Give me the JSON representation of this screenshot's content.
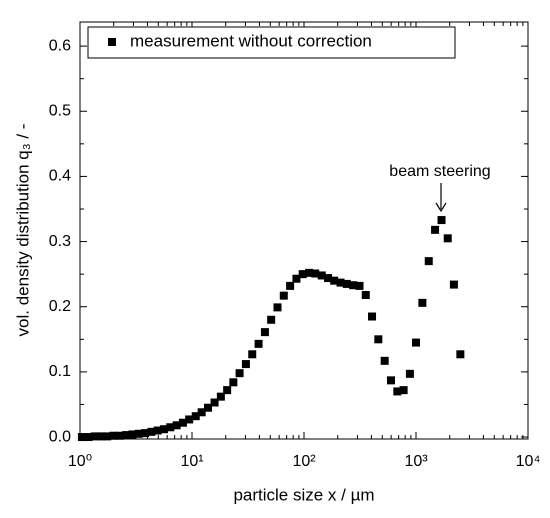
{
  "chart_data": {
    "type": "scatter",
    "xlabel": "particle size x / µm",
    "ylabel": "vol. density distribution q₃ / -",
    "annotation": "beam steering",
    "legend": "upper left",
    "log_x": true,
    "xlim": [
      1,
      10000
    ],
    "ylim": [
      -0.003,
      0.637
    ],
    "xticks": [
      {
        "value": 1,
        "label": "10⁰"
      },
      {
        "value": 10,
        "label": "10¹"
      },
      {
        "value": 100,
        "label": "10²"
      },
      {
        "value": 1000,
        "label": "10³"
      },
      {
        "value": 10000,
        "label": "10⁴"
      }
    ],
    "yticks": [
      {
        "value": 0,
        "label": "0.0"
      },
      0.1,
      0.2,
      0.3,
      0.4,
      0.5,
      0.6
    ],
    "series": [
      {
        "name": "measurement without correction",
        "color": "#000000",
        "x": [
          1.04,
          1.19,
          1.35,
          1.54,
          1.75,
          1.99,
          2.27,
          2.58,
          2.94,
          3.35,
          3.81,
          4.34,
          4.94,
          5.62,
          6.4,
          7.29,
          8.3,
          9.44,
          10.8,
          12.2,
          13.9,
          15.9,
          18.1,
          20.6,
          23.4,
          26.6,
          30.3,
          34.5,
          39.3,
          44.8,
          50.9,
          58.0,
          66.0,
          75.2,
          85.6,
          97.4,
          111,
          126,
          144,
          164,
          186,
          212,
          241,
          275,
          313,
          356,
          405,
          461,
          525,
          598,
          681,
          775,
          882,
          1000,
          1140,
          1300,
          1480,
          1690,
          1920,
          2180,
          2490
        ],
        "values": [
          0.0,
          0.0,
          0.001,
          0.001,
          0.001,
          0.002,
          0.002,
          0.003,
          0.004,
          0.005,
          0.006,
          0.008,
          0.01,
          0.012,
          0.015,
          0.018,
          0.022,
          0.027,
          0.032,
          0.038,
          0.045,
          0.053,
          0.062,
          0.072,
          0.084,
          0.098,
          0.112,
          0.127,
          0.143,
          0.161,
          0.18,
          0.199,
          0.217,
          0.232,
          0.243,
          0.25,
          0.252,
          0.251,
          0.248,
          0.244,
          0.24,
          0.237,
          0.235,
          0.233,
          0.232,
          0.218,
          0.185,
          0.15,
          0.117,
          0.087,
          0.07,
          0.072,
          0.097,
          0.145,
          0.206,
          0.27,
          0.318,
          0.333,
          0.305,
          0.234,
          0.127
        ]
      }
    ]
  }
}
